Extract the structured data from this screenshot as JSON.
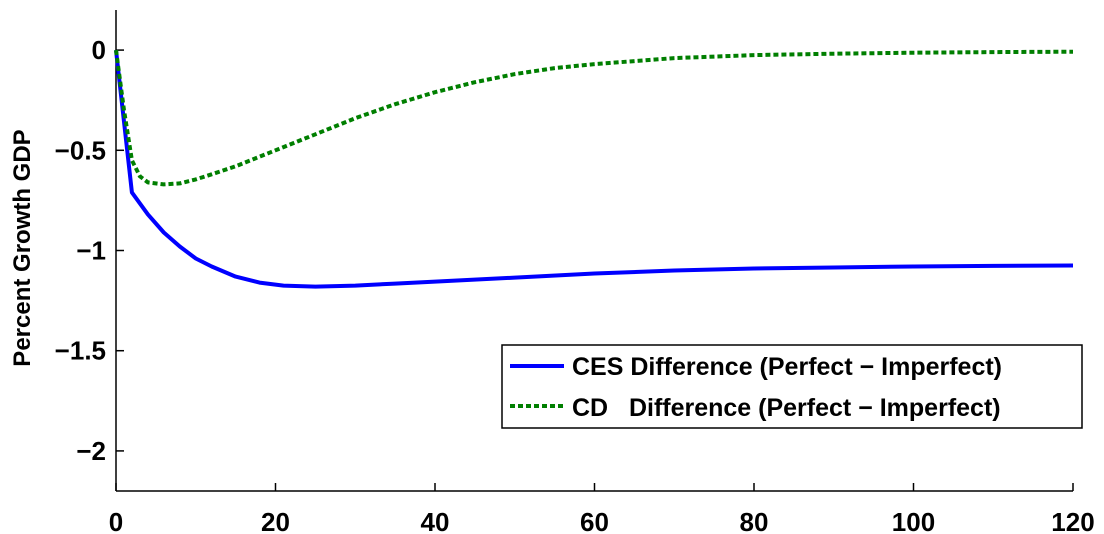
{
  "chart_data": {
    "type": "line",
    "title": "",
    "xlabel": "",
    "ylabel": "Percent Growth GDP",
    "xlim": [
      0,
      120
    ],
    "ylim": [
      -2.2,
      0.2
    ],
    "xticks": [
      0,
      20,
      40,
      60,
      80,
      100,
      120
    ],
    "xtick_labels": [
      "0",
      "20",
      "40",
      "60",
      "80",
      "100",
      "120"
    ],
    "yticks": [
      0,
      -0.5,
      -1,
      -1.5,
      -2
    ],
    "ytick_labels": [
      "0",
      "−0.5",
      "−1",
      "−1.5",
      "−2"
    ],
    "grid": false,
    "legend_position": "lower-right",
    "series": [
      {
        "name": "CES Difference (Perfect − Imperfect)",
        "color": "#0000ff",
        "style": "solid",
        "x": [
          0,
          2,
          4,
          6,
          8,
          10,
          12,
          15,
          18,
          21,
          25,
          30,
          35,
          40,
          50,
          60,
          70,
          80,
          90,
          100,
          110,
          120
        ],
        "y": [
          0,
          -0.71,
          -0.82,
          -0.91,
          -0.98,
          -1.04,
          -1.08,
          -1.13,
          -1.16,
          -1.175,
          -1.18,
          -1.175,
          -1.165,
          -1.155,
          -1.135,
          -1.115,
          -1.1,
          -1.09,
          -1.085,
          -1.08,
          -1.077,
          -1.075
        ]
      },
      {
        "name": "CD   Difference (Perfect − Imperfect)",
        "color": "#007f00",
        "style": "dotted",
        "x": [
          0,
          1,
          2,
          3,
          4,
          6,
          8,
          10,
          12,
          15,
          20,
          25,
          30,
          35,
          40,
          45,
          50,
          55,
          60,
          70,
          80,
          90,
          100,
          110,
          120
        ],
        "y": [
          0,
          -0.3,
          -0.55,
          -0.63,
          -0.66,
          -0.67,
          -0.665,
          -0.645,
          -0.62,
          -0.58,
          -0.5,
          -0.42,
          -0.34,
          -0.27,
          -0.21,
          -0.16,
          -0.12,
          -0.09,
          -0.07,
          -0.04,
          -0.025,
          -0.018,
          -0.013,
          -0.01,
          -0.008
        ]
      }
    ]
  }
}
